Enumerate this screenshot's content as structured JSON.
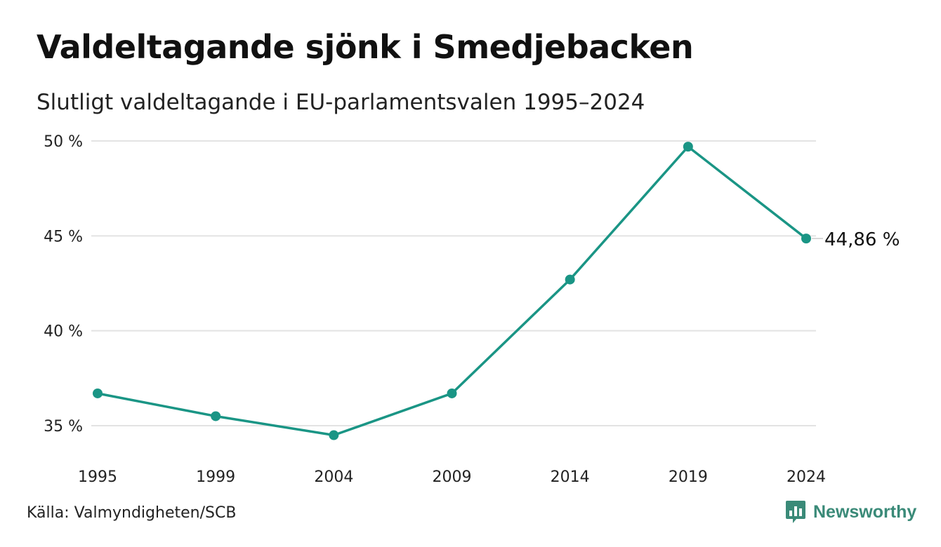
{
  "header": {
    "title": "Valdeltagande sjönk i Smedjebacken",
    "subtitle": "Slutligt valdeltagande i EU-parlamentsvalen 1995–2024"
  },
  "footer": {
    "source": "Källa: Valmyndigheten/SCB",
    "brand": "Newsworthy"
  },
  "colors": {
    "line": "#1a9585",
    "grid": "#e3e3e3",
    "brand": "#3a8a78"
  },
  "chart_data": {
    "type": "line",
    "categories": [
      "1995",
      "1999",
      "2004",
      "2009",
      "2014",
      "2019",
      "2024"
    ],
    "series": [
      {
        "values": [
          36.7,
          35.5,
          34.5,
          36.7,
          42.7,
          49.7,
          44.86
        ]
      }
    ],
    "y_ticks": [
      35,
      40,
      45,
      50
    ],
    "y_tick_labels": [
      "35 %",
      "40 %",
      "45 %",
      "50 %"
    ],
    "ylim": [
      35,
      50
    ],
    "grid": true,
    "end_label": "44,86 %",
    "xlabel": "",
    "ylabel": ""
  }
}
